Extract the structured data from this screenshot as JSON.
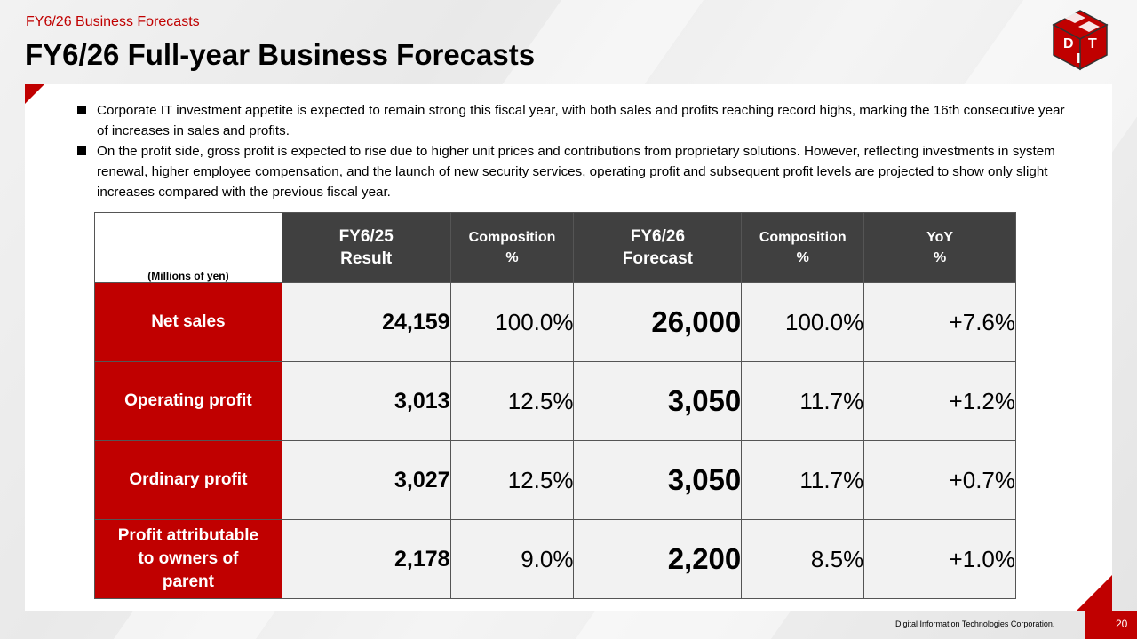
{
  "header": {
    "subtitle": "FY6/26  Business Forecasts",
    "title": "FY6/26 Full-year Business Forecasts"
  },
  "logo": {
    "letters": [
      "D",
      "I",
      "T"
    ],
    "colors": {
      "cube": "#c00000",
      "text": "#ffffff"
    }
  },
  "bullets": [
    "Corporate IT investment appetite is expected to remain strong this fiscal year, with both sales and profits reaching record highs, marking the 16th consecutive year of increases in sales and profits.",
    "On the profit side, gross profit is expected to rise due to higher unit prices and contributions from proprietary solutions. However, reflecting investments in system renewal, higher employee compensation, and the launch of new security services, operating profit and subsequent profit levels are projected to show only slight increases compared with the previous fiscal year."
  ],
  "table": {
    "unit_label": "(Millions of yen)",
    "columns": [
      {
        "line1": "FY6/25",
        "line2": "Result"
      },
      {
        "line1": "Composition",
        "line2": "%"
      },
      {
        "line1": "FY6/26",
        "line2": "Forecast"
      },
      {
        "line1": "Composition",
        "line2": "%"
      },
      {
        "line1": "YoY",
        "line2": "%"
      }
    ],
    "rows": [
      {
        "label": "Net sales",
        "values": [
          "24,159",
          "100.0%",
          "26,000",
          "100.0%",
          "+7.6%"
        ]
      },
      {
        "label": "Operating profit",
        "values": [
          "3,013",
          "12.5%",
          "3,050",
          "11.7%",
          "+1.2%"
        ]
      },
      {
        "label": "Ordinary profit",
        "values": [
          "3,027",
          "12.5%",
          "3,050",
          "11.7%",
          "+0.7%"
        ]
      },
      {
        "label": "Profit attributable to owners of parent",
        "values": [
          "2,178",
          "9.0%",
          "2,200",
          "8.5%",
          "+1.0%"
        ]
      }
    ]
  },
  "footer": {
    "company": "Digital Information Technologies Corporation.",
    "page": "20"
  },
  "colors": {
    "accent": "#c00000",
    "header_bg": "#404040",
    "cell_bg": "#f2f2f2"
  }
}
